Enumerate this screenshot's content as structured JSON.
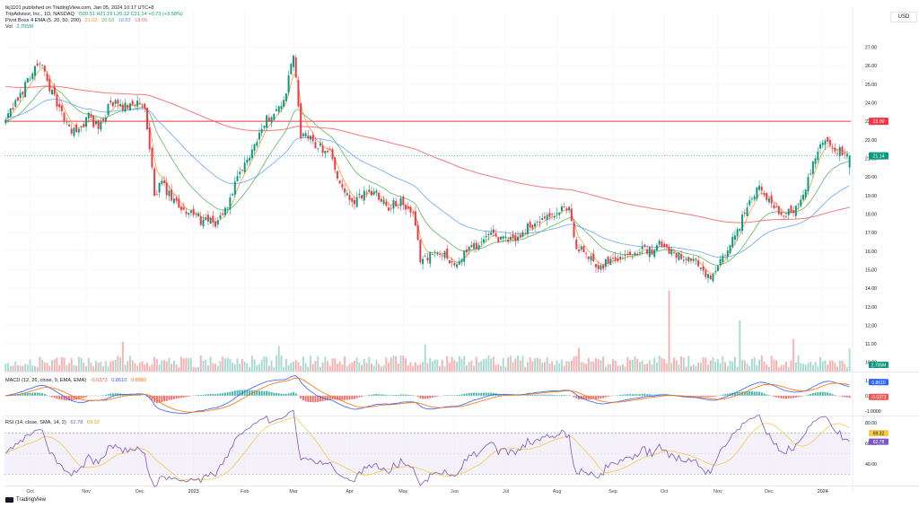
{
  "header": {
    "published": "tkj1101 published on TradingView.com, Jan 05, 2024 10:17 UTC+8",
    "symbol": "TripAdvisor, Inc., 1D, NASDAQ",
    "ohlc": "O20.51 H21.19 L20.12 C21.14 +0.73 (+3.58%)",
    "ohlc_color": "#089981",
    "ema_name": "Pivot Boss 4 EMA (5, 20, 50, 200)",
    "ema_values": [
      {
        "value": "21.02",
        "color": "#f7931a"
      },
      {
        "value": "20.53",
        "color": "#4caf50"
      },
      {
        "value": "18.83",
        "color": "#5b9cf6"
      },
      {
        "value": "18.05",
        "color": "#f26b6b"
      }
    ],
    "vol_name": "Vol",
    "vol_value": "2.705M",
    "currency": "USD"
  },
  "macd_title": {
    "name": "MACD (12, 26, close, 9, EMA, EMA)",
    "v1": "-0.0373",
    "v2": "0.8610",
    "v3": "0.8983"
  },
  "rsi_title": {
    "name": "RSI (14, close, SMA, 14, 2)",
    "v1": "62.78",
    "v2": "69.32"
  },
  "branding": "TradingView",
  "chart_data": {
    "type": "candlestick",
    "symbol": "TRIP",
    "price_axis": [
      27,
      26,
      25,
      24,
      23,
      22,
      21,
      20,
      19,
      18,
      17,
      16,
      15,
      14,
      13,
      12,
      11,
      10
    ],
    "price_axis_labels": [
      "27.00",
      "26.00",
      "25.00",
      "24.00",
      "23.00",
      "22.00",
      "21.00",
      "20.00",
      "19.00",
      "18.00",
      "17.00",
      "16.00",
      "15.00",
      "14.00",
      "13.00",
      "12.00",
      "11.00",
      "10.00"
    ],
    "ylim": [
      9.6,
      27.8
    ],
    "x_months": [
      "Oct",
      "Nov",
      "Dec",
      "2023",
      "Feb",
      "Mar",
      "Apr",
      "May",
      "Jun",
      "Jul",
      "Aug",
      "Sep",
      "Oct",
      "Nov",
      "Dec",
      "2024"
    ],
    "horizontal_line": {
      "price": 23.0,
      "label": "23.00",
      "color": "#f23645"
    },
    "last_price": {
      "value": 21.14,
      "label": "21.14",
      "color": "#089981"
    },
    "price_anchors": [
      [
        0,
        23.0
      ],
      [
        6,
        24.4
      ],
      [
        10,
        25.5
      ],
      [
        14,
        26.2
      ],
      [
        20,
        24.2
      ],
      [
        25,
        22.8
      ],
      [
        29,
        22.3
      ],
      [
        34,
        23.3
      ],
      [
        38,
        22.6
      ],
      [
        43,
        24.0
      ],
      [
        48,
        23.7
      ],
      [
        52,
        24.1
      ],
      [
        57,
        23.6
      ],
      [
        61,
        19.2
      ],
      [
        64,
        19.6
      ],
      [
        69,
        18.6
      ],
      [
        74,
        18.2
      ],
      [
        81,
        17.6
      ],
      [
        86,
        17.5
      ],
      [
        90,
        18.2
      ],
      [
        95,
        19.8
      ],
      [
        100,
        21.2
      ],
      [
        105,
        22.7
      ],
      [
        110,
        23.6
      ],
      [
        114,
        24.0
      ],
      [
        118,
        26.6
      ],
      [
        121,
        22.3
      ],
      [
        124,
        22.1
      ],
      [
        129,
        21.6
      ],
      [
        133,
        21.4
      ],
      [
        138,
        19.2
      ],
      [
        143,
        18.5
      ],
      [
        147,
        19.2
      ],
      [
        152,
        19.2
      ],
      [
        157,
        18.4
      ],
      [
        162,
        18.6
      ],
      [
        167,
        17.9
      ],
      [
        170,
        15.6
      ],
      [
        175,
        15.8
      ],
      [
        180,
        15.9
      ],
      [
        185,
        15.1
      ],
      [
        189,
        16.1
      ],
      [
        194,
        16.4
      ],
      [
        198,
        16.8
      ],
      [
        204,
        16.6
      ],
      [
        210,
        16.7
      ],
      [
        214,
        17.3
      ],
      [
        220,
        17.6
      ],
      [
        226,
        18.0
      ],
      [
        231,
        18.4
      ],
      [
        234,
        16.2
      ],
      [
        239,
        15.7
      ],
      [
        244,
        15.2
      ],
      [
        249,
        15.7
      ],
      [
        254,
        15.7
      ],
      [
        258,
        16.0
      ],
      [
        264,
        16.0
      ],
      [
        269,
        16.4
      ],
      [
        274,
        15.9
      ],
      [
        280,
        15.7
      ],
      [
        284,
        15.2
      ],
      [
        289,
        14.4
      ],
      [
        293,
        15.4
      ],
      [
        297,
        16.2
      ],
      [
        301,
        17.4
      ],
      [
        305,
        18.8
      ],
      [
        309,
        19.4
      ],
      [
        314,
        18.6
      ],
      [
        319,
        17.9
      ],
      [
        323,
        18.3
      ],
      [
        327,
        19.0
      ],
      [
        331,
        20.6
      ],
      [
        333,
        21.4
      ],
      [
        336,
        21.8
      ],
      [
        340,
        21.6
      ],
      [
        345,
        21.1
      ],
      [
        346,
        21.14
      ]
    ],
    "candles_total": 347,
    "ma_overlays": [
      {
        "name": "EMA 5",
        "period": 5,
        "color": "#f7931a",
        "value": "21.02"
      },
      {
        "name": "EMA 20",
        "period": 20,
        "color": "#4caf50",
        "value": "20.53"
      },
      {
        "name": "EMA 50",
        "period": 50,
        "color": "#5b9cf6",
        "value": "18.83"
      },
      {
        "name": "EMA 200",
        "period": 200,
        "color": "#f26b6b",
        "value": "18.05"
      }
    ],
    "volume_panel": {
      "last": "2.705M",
      "spikes": [
        [
          48,
          3.5
        ],
        [
          112,
          3.0
        ],
        [
          172,
          3.2
        ],
        [
          235,
          2.8
        ],
        [
          272,
          9.5
        ],
        [
          301,
          6.0
        ],
        [
          323,
          3.8
        ]
      ],
      "label_color": "#089981"
    },
    "macd_panel": {
      "axis_labels": [
        "1.0000",
        "0.0000",
        "-1.0000"
      ],
      "ylim": [
        -1.25,
        1.35
      ],
      "values": {
        "histogram": "-0.0373",
        "macd": "0.8610",
        "signal": "0.8983"
      },
      "macd_color": "#2962ff",
      "signal_color": "#ff6d00",
      "hist_up_color": "#26a69a",
      "hist_down_color": "#ef5350"
    },
    "rsi_panel": {
      "axis_labels": [
        "80.00",
        "60.00",
        "40.00"
      ],
      "ylim": [
        20,
        85
      ],
      "upper_band": 70,
      "lower_band": 30,
      "values": {
        "rsi": "62.78",
        "rsi_ma": "69.32"
      },
      "rsi_color": "#7e57c2",
      "ma_color": "#f7c948",
      "band_fill": "#ede7f6"
    },
    "colors": {
      "up": "#089981",
      "down": "#f23645"
    }
  }
}
